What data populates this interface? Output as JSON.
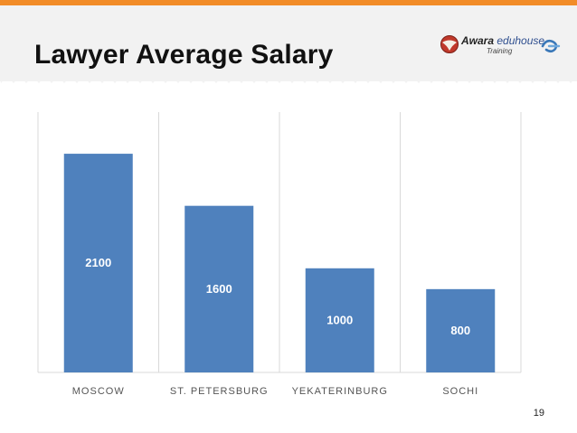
{
  "slide": {
    "title": "Lawyer Average Salary",
    "page_number": "19"
  },
  "logo": {
    "brand_main": "Awara ",
    "brand_tail": "eduhouse",
    "subtitle": "Training"
  },
  "colors": {
    "accent_stripe": "#f28c28",
    "header_band": "#f2f2f2",
    "bar": "#4f81bd",
    "grid": "#d9d9d9"
  },
  "chart_data": {
    "type": "bar",
    "categories": [
      "MOSCOW",
      "ST. PETERSBURG",
      "YEKATERINBURG",
      "SOCHI"
    ],
    "values": [
      2100,
      1600,
      1000,
      800
    ],
    "title": "",
    "xlabel": "",
    "ylabel": "",
    "ylim": [
      0,
      2500
    ],
    "grid": "vertical category separators",
    "legend": "none",
    "data_labels": "inside bars"
  }
}
